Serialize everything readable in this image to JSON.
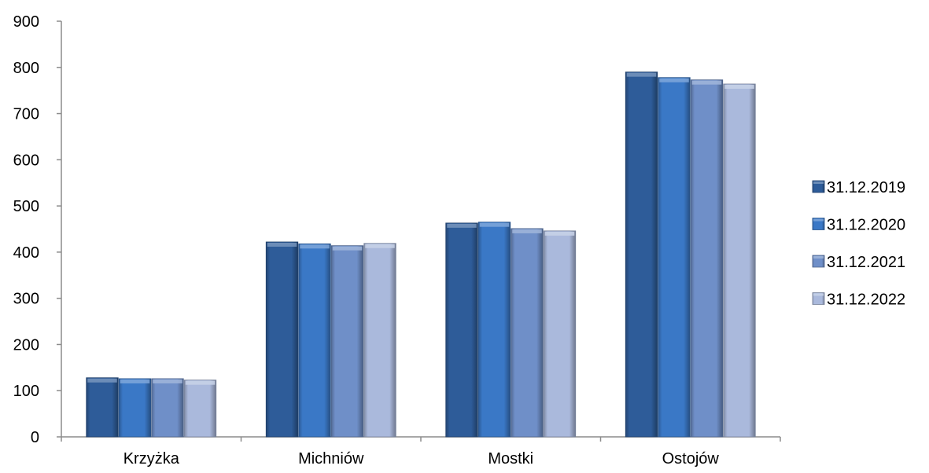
{
  "chart_data": {
    "type": "bar",
    "categories": [
      "Krzyżka",
      "Michniów",
      "Mostki",
      "Ostojów"
    ],
    "series": [
      {
        "name": "31.12.2019",
        "values": [
          128,
          422,
          463,
          790
        ],
        "color": "#2e5c99"
      },
      {
        "name": "31.12.2020",
        "values": [
          126,
          418,
          465,
          778
        ],
        "color": "#3a78c6"
      },
      {
        "name": "31.12.2021",
        "values": [
          126,
          414,
          451,
          773
        ],
        "color": "#6f8fc8"
      },
      {
        "name": "31.12.2022",
        "values": [
          123,
          419,
          446,
          764
        ],
        "color": "#aab9dc"
      }
    ],
    "ylim": [
      0,
      900
    ],
    "yticks": [
      0,
      100,
      200,
      300,
      400,
      500,
      600,
      700,
      800,
      900
    ],
    "legend_position": "right",
    "grid": false
  }
}
